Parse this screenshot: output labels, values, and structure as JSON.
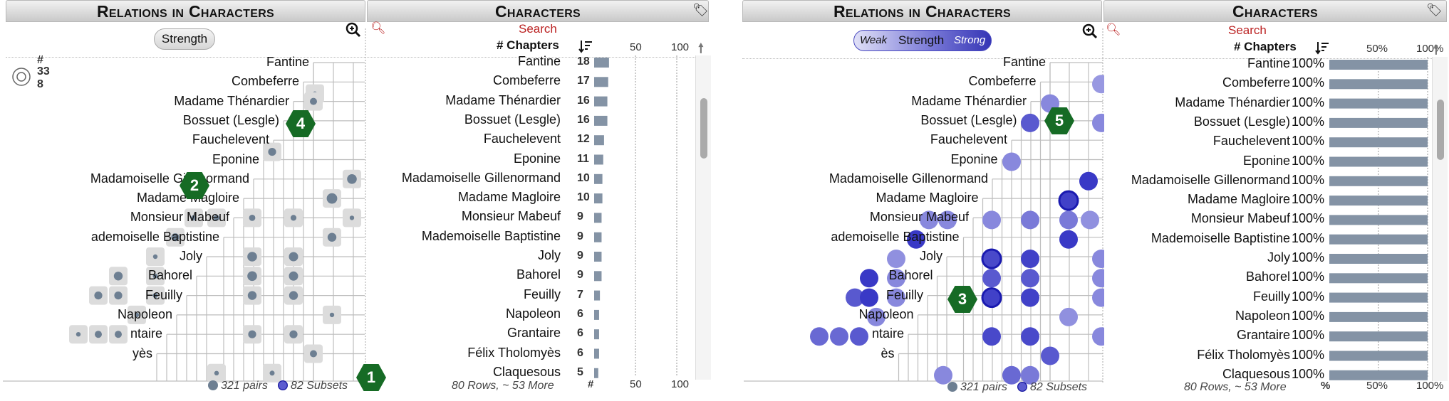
{
  "left": {
    "relations_title": "Relations in Characters",
    "characters_title": "Characters",
    "strength_label": "Strength",
    "search_label": "Search",
    "chapters_label": "# Chapters",
    "size_legend": {
      "hash": "#",
      "max": "33",
      "min": "8"
    },
    "axis_ticks": [
      "50",
      "100"
    ],
    "footer_axis": [
      "#",
      "50",
      "100"
    ],
    "pairs_label": "321 pairs",
    "subsets_label": "82 Subsets",
    "rows_label": "80 Rows, ~ 53 More",
    "badges": [
      "1",
      "2",
      "4"
    ],
    "row_labels": [
      "Fantine",
      "Combeferre",
      "Madame Thénardier",
      "Bossuet (Lesgle)",
      "Fauchelevent",
      "Eponine",
      "Madamoiselle Gillenormand",
      "Madame Magloire",
      "Monsieur Mabeuf",
      "Mademoiselle Baptistine",
      "Joly",
      "Bahorel",
      "Feuilly",
      "Napoleon",
      "Grantaire",
      "Félix Tholomyès",
      "Claquesous"
    ],
    "matrix_labels": [
      "Fantine",
      "Combeferre",
      "Madame Thénardier",
      "Bossuet (Lesgle)",
      "Fauchelevent",
      "Eponine",
      "Madamoiselle Gillenormand",
      "Madame Magloire",
      "Monsieur Mabeuf",
      "ademoiselle Baptistine",
      "Joly",
      "Bahorel",
      "Feuilly",
      "Napoleon",
      "ntaire",
      "yès"
    ],
    "chapters": [
      18,
      17,
      16,
      16,
      12,
      11,
      10,
      10,
      9,
      9,
      9,
      9,
      7,
      6,
      6,
      6,
      5
    ]
  },
  "right": {
    "relations_title": "Relations in Characters",
    "characters_title": "Characters",
    "strength_weak": "Weak",
    "strength_label": "Strength",
    "strength_strong": "Strong",
    "search_label": "Search",
    "chapters_label": "# Chapters",
    "axis_ticks": [
      "50%",
      "100%"
    ],
    "footer_axis": [
      "%",
      "50%",
      "100%"
    ],
    "pairs_label": "321 pairs",
    "subsets_label": "82 Subsets",
    "rows_label": "80 Rows, ~ 53 More",
    "badges": [
      "3",
      "5"
    ],
    "row_labels": [
      "Fantine",
      "Combeferre",
      "Madame Thénardier",
      "Bossuet (Lesgle)",
      "Fauchelevent",
      "Eponine",
      "Madamoiselle Gillenormand",
      "Madame Magloire",
      "Monsieur Mabeuf",
      "Mademoiselle Baptistine",
      "Joly",
      "Bahorel",
      "Feuilly",
      "Napoleon",
      "Grantaire",
      "Félix Tholomyès",
      "Claquesous"
    ],
    "matrix_labels": [
      "Fantine",
      "Combeferre",
      "Madame Thénardier",
      "Bossuet (Lesgle)",
      "Fauchelevent",
      "Eponine",
      "Madamoiselle Gillenormand",
      "Madame Magloire",
      "Monsieur Mabeuf",
      "ademoiselle Baptistine",
      "Joly",
      "Bahorel",
      "Feuilly",
      "Napoleon",
      "ntaire",
      "ès"
    ],
    "percent_value": 100,
    "percent_label": "100%"
  },
  "colors": {
    "bar": "#8493a5",
    "dot": "#6d7f92",
    "tile": "#dcdcdc",
    "accent": "#b22222",
    "badge": "#166b25",
    "purple": "#5b5bd0"
  },
  "icons": [
    "zoom-icon",
    "search-icon",
    "tag-icon",
    "sort-icon",
    "up-arrow-icon"
  ]
}
